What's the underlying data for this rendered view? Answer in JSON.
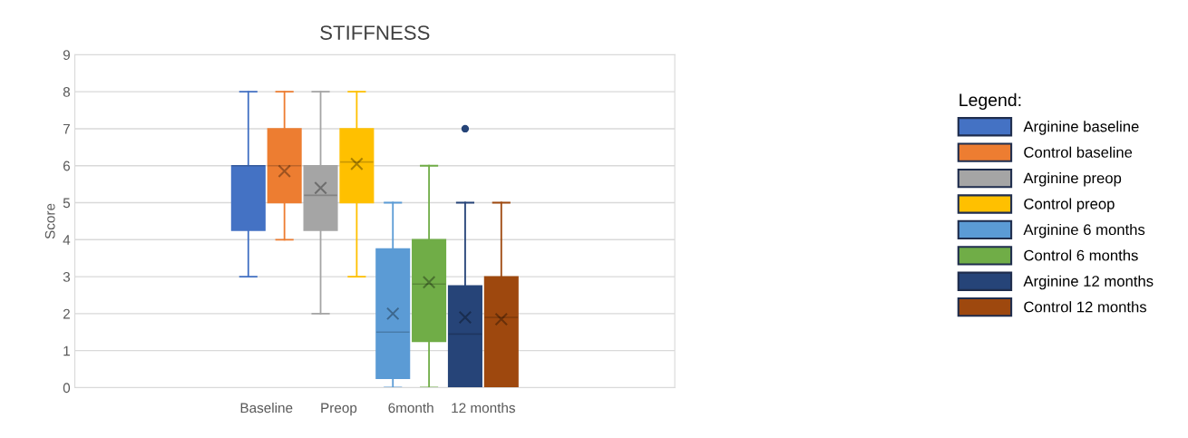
{
  "chart_data": {
    "type": "box",
    "title": "STIFFNESS",
    "ylabel": "Score",
    "legend_title": "Legend:",
    "categories": [
      null
    ],
    "annotations": [
      "Baseline",
      "Preop",
      "6month",
      "12 months"
    ],
    "ylim": [
      0,
      9
    ],
    "yticks": [
      0,
      1,
      2,
      3,
      4,
      5,
      6,
      7,
      8,
      9
    ],
    "grid": "y",
    "legend": "right",
    "series": [
      {
        "name": "Arginine baseline",
        "color": "#4472c4",
        "boxes": [
          {
            "low": 3,
            "q1": 4.25,
            "median": 6,
            "q3": 6,
            "high": 8
          }
        ]
      },
      {
        "name": "Control baseline",
        "color": "#ed7d31",
        "boxes": [
          {
            "low": 4,
            "q1": 5,
            "median": 6,
            "q3": 7,
            "high": 8,
            "mean": 5.85
          }
        ]
      },
      {
        "name": "Arginine preop",
        "color": "#a5a5a5",
        "boxes": [
          {
            "low": 2,
            "q1": 4.25,
            "median": 5.2,
            "q3": 6,
            "high": 8,
            "mean": 5.4
          }
        ]
      },
      {
        "name": "Control preop",
        "color": "#ffc000",
        "boxes": [
          {
            "low": 3,
            "q1": 5,
            "median": 6.1,
            "q3": 7,
            "high": 8,
            "mean": 6.05
          }
        ]
      },
      {
        "name": "Arginine 6 months",
        "color": "#5b9bd5",
        "boxes": [
          {
            "low": 0,
            "q1": 0.25,
            "median": 1.5,
            "q3": 3.75,
            "high": 5,
            "mean": 2.0
          }
        ]
      },
      {
        "name": "Control 6 months",
        "color": "#70ad47",
        "boxes": [
          {
            "low": 0,
            "q1": 1.25,
            "median": 2.8,
            "q3": 4,
            "high": 6,
            "mean": 2.85
          }
        ]
      },
      {
        "name": "Arginine 12 months",
        "color": "#264478",
        "boxes": [
          {
            "low": 0,
            "q1": 0,
            "median": 1.45,
            "q3": 2.75,
            "high": 5,
            "mean": 1.9,
            "outliers": [
              7
            ]
          }
        ]
      },
      {
        "name": "Control 12 months",
        "color": "#9e480e",
        "boxes": [
          {
            "low": 0,
            "q1": 0,
            "median": 1.9,
            "q3": 3,
            "high": 5,
            "mean": 1.85
          }
        ]
      }
    ]
  }
}
